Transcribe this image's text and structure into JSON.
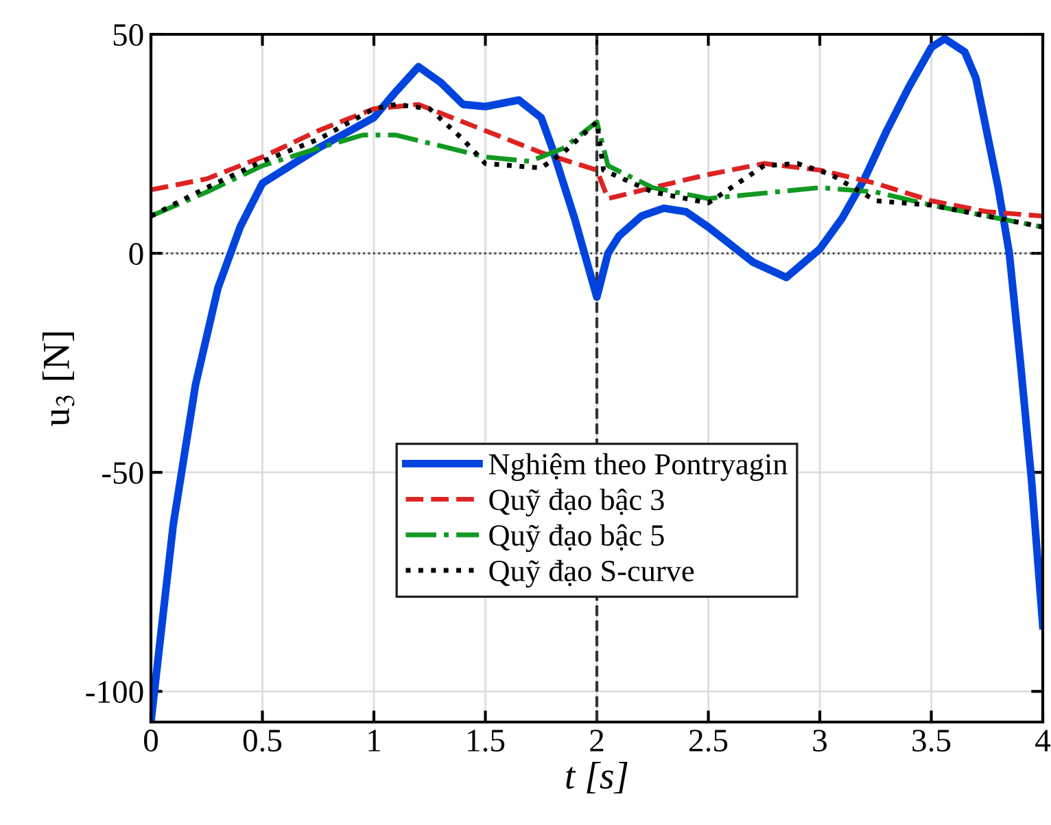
{
  "chart_data": {
    "type": "line",
    "xlabel": "t [s]",
    "ylabel": "u$_{3}$ [N]",
    "xlim": [
      0,
      4
    ],
    "ylim": [
      -107,
      50
    ],
    "xticks": [
      0,
      0.5,
      1,
      1.5,
      2,
      2.5,
      3,
      3.5,
      4
    ],
    "yticks": [
      -100,
      -50,
      0,
      50
    ],
    "grid": true,
    "legend": "bottom",
    "tick_labels": "xy",
    "ref_lines": [
      {
        "axis": "x",
        "value": 2,
        "color": "#333333",
        "line_style": "dashed"
      },
      {
        "axis": "y",
        "value": 0,
        "color": "#333333",
        "line_style": "dotted"
      }
    ],
    "series": [
      {
        "name": "Nghiệm theo Pontryagin",
        "color": "#0044dd",
        "line_style": "solid",
        "x": [
          0,
          0.1,
          0.2,
          0.3,
          0.4,
          0.5,
          0.75,
          1,
          1.1,
          1.2,
          1.3,
          1.4,
          1.5,
          1.65,
          1.75,
          1.8,
          1.9,
          2,
          2.05,
          2.1,
          2.2,
          2.3,
          2.4,
          2.5,
          2.6,
          2.7,
          2.85,
          3,
          3.1,
          3.2,
          3.3,
          3.4,
          3.5,
          3.56,
          3.65,
          3.7,
          3.8,
          3.85,
          3.9,
          3.95,
          4
        ],
        "values": [
          -107,
          -62,
          -30,
          -8,
          6,
          16,
          24,
          31,
          37,
          42.6,
          39,
          34,
          33.5,
          35,
          31,
          24,
          8,
          -10,
          0,
          4,
          8.5,
          10.3,
          9.5,
          6,
          2,
          -2,
          -5.5,
          1,
          8,
          17,
          28,
          38,
          47,
          49,
          46,
          40,
          15,
          0,
          -25,
          -52,
          -85
        ]
      },
      {
        "name": "Quỹ đạo bậc 3",
        "color": "#dd2222",
        "line_style": "dashed",
        "x": [
          0,
          0.25,
          0.5,
          0.75,
          1,
          1.2,
          1.5,
          1.75,
          2,
          2.05,
          2.25,
          2.5,
          2.75,
          3,
          3.25,
          3.5,
          3.75,
          4
        ],
        "values": [
          14.5,
          17,
          22,
          28,
          33,
          34,
          28,
          23,
          19,
          12.5,
          15,
          18,
          20.5,
          19,
          16,
          12,
          9.5,
          8.5
        ]
      },
      {
        "name": "Quỹ đạo bậc 5",
        "color": "#119922",
        "line_style": "dashdot",
        "x": [
          0,
          0.25,
          0.5,
          0.75,
          0.95,
          1.1,
          1.5,
          1.7,
          1.85,
          2,
          2.05,
          2.25,
          2.5,
          3,
          3.25,
          3.5,
          4
        ],
        "values": [
          8.5,
          14,
          20,
          24,
          27,
          27,
          22,
          21,
          24,
          30,
          20,
          15,
          12.5,
          15,
          14,
          11,
          6
        ]
      },
      {
        "name": "Quỹ đạo S-curve",
        "color": "#000000",
        "line_style": "dotted",
        "x": [
          0,
          0.25,
          0.5,
          0.75,
          1,
          1.1,
          1.25,
          1.4,
          1.5,
          1.75,
          1.85,
          2,
          2.03,
          2.25,
          2.5,
          2.75,
          2.9,
          3.05,
          3.25,
          3.5,
          4
        ],
        "values": [
          8.5,
          15,
          21,
          26,
          33,
          34,
          33,
          26,
          20.5,
          19.5,
          23,
          30,
          19,
          14,
          11.5,
          20,
          20.5,
          18,
          12,
          11,
          6
        ]
      }
    ]
  }
}
